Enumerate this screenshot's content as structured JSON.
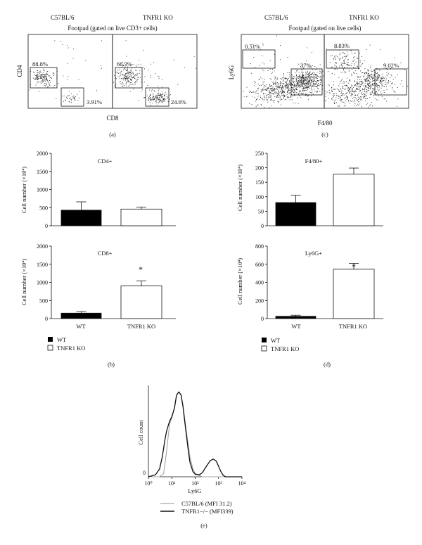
{
  "chart_data": [
    {
      "panel": "(a)",
      "type": "scatter",
      "title": "Footpad (gated on live CD3+ cells)",
      "xlabel": "CD8",
      "ylabel": "CD4",
      "plots": [
        {
          "name": "C57BL/6",
          "gates": [
            {
              "label": "88.8%"
            },
            {
              "label": "3.91%"
            }
          ]
        },
        {
          "name": "TNFR1 KO",
          "gates": [
            {
              "label": "66.3%"
            },
            {
              "label": "24.6%"
            }
          ]
        }
      ]
    },
    {
      "panel": "(c)",
      "type": "scatter",
      "title": "Footpad (gated on live cells)",
      "xlabel": "F4/80",
      "ylabel": "Ly6G",
      "plots": [
        {
          "name": "C57BL/6",
          "gates": [
            {
              "label": "0.51%"
            },
            {
              "label": "37%"
            }
          ]
        },
        {
          "name": "TNFR1 KO",
          "gates": [
            {
              "label": "8.83%"
            },
            {
              "label": "9.02%"
            }
          ]
        }
      ]
    },
    {
      "panel": "(b)",
      "type": "bar",
      "categories": [
        "WT",
        "TNFR1 KO"
      ],
      "legend": [
        "WT",
        "TNFR1 KO"
      ],
      "legend_placement": "bottom-left",
      "subplots": [
        {
          "title": "CD4+",
          "ylabel": "Cell number (×10⁴)",
          "ylim": [
            0,
            2000
          ],
          "yticks": [
            "0",
            "500",
            "1000",
            "1500",
            "2000"
          ],
          "values": [
            430,
            460
          ],
          "errors": [
            230,
            55
          ],
          "significant": [
            false,
            false
          ],
          "xticks_shown": false
        },
        {
          "title": "CD8+",
          "ylabel": "Cell number (×10⁴)",
          "ylim": [
            0,
            2000
          ],
          "yticks": [
            "0",
            "500",
            "1000",
            "1500",
            "2000"
          ],
          "values": [
            150,
            900
          ],
          "errors": [
            45,
            140
          ],
          "significant": [
            false,
            true
          ],
          "xticks_shown": true
        }
      ]
    },
    {
      "panel": "(d)",
      "type": "bar",
      "categories": [
        "WT",
        "TNFR1 KO"
      ],
      "legend": [
        "WT",
        "TNFR1 KO"
      ],
      "legend_placement": "bottom-left",
      "subplots": [
        {
          "title": "F4/80+",
          "ylabel": "Cell number (×10⁴)",
          "ylim": [
            0,
            250
          ],
          "yticks": [
            "0",
            "50",
            "100",
            "150",
            "200",
            "250"
          ],
          "values": [
            80,
            178
          ],
          "errors": [
            25,
            21
          ],
          "significant": [
            false,
            false
          ],
          "xticks_shown": false
        },
        {
          "title": "Ly6G+",
          "ylabel": "Cell number (×10⁴)",
          "ylim": [
            0,
            800
          ],
          "yticks": [
            "0",
            "200",
            "400",
            "600",
            "800"
          ],
          "values": [
            25,
            545
          ],
          "errors": [
            12,
            65
          ],
          "significant": [
            false,
            true
          ],
          "xticks_shown": true
        }
      ]
    },
    {
      "panel": "(e)",
      "type": "line",
      "xlabel": "Ly6G",
      "ylabel": "Cell count",
      "x_scale": "log",
      "xlim": [
        1,
        10000
      ],
      "xticks": [
        "10⁰",
        "10¹",
        "10²",
        "10³",
        "10⁴"
      ],
      "yticks": [
        "0"
      ],
      "series": [
        {
          "name": "C57BL/6 (MFI 31.2)",
          "color": "#a6a6a6",
          "x": [
            1,
            3,
            4.5,
            6,
            8,
            10,
            13,
            16,
            20,
            25,
            30,
            40,
            50,
            60,
            80,
            100,
            200,
            1000,
            10000
          ],
          "y": [
            0,
            0,
            5,
            40,
            80,
            90,
            105,
            125,
            130,
            125,
            110,
            75,
            50,
            30,
            12,
            5,
            0,
            0,
            0
          ]
        },
        {
          "name": "TNFR1−/− (MFI339)",
          "color": "#111111",
          "x": [
            1,
            2,
            3,
            4,
            5,
            6,
            8,
            10,
            13,
            16,
            20,
            25,
            30,
            40,
            50,
            60,
            80,
            100,
            150,
            200,
            300,
            450,
            600,
            800,
            1000,
            1300,
            1600,
            2000,
            10000
          ],
          "y": [
            0,
            3,
            12,
            32,
            55,
            70,
            85,
            92,
            105,
            125,
            130,
            125,
            108,
            70,
            42,
            22,
            8,
            4,
            3,
            6,
            16,
            25,
            27,
            24,
            16,
            7,
            2,
            0,
            0
          ]
        }
      ]
    }
  ],
  "labels": {
    "cd4_title": "CD4+",
    "cd8_title": "CD8+",
    "f480_title": "F4/80+",
    "ly6g_title": "Ly6G+",
    "ylabel_bar": "Cell number (×10⁴)",
    "cat_wt": "WT",
    "cat_ko": "TNFR1 KO",
    "star": "*",
    "panel_a": "(a)",
    "panel_b": "(b)",
    "panel_c": "(c)",
    "panel_d": "(d)",
    "panel_e": "(e)"
  },
  "colors": {
    "wt_fill": "#000000",
    "ko_fill": "#ffffff",
    "axis": "#111111"
  }
}
